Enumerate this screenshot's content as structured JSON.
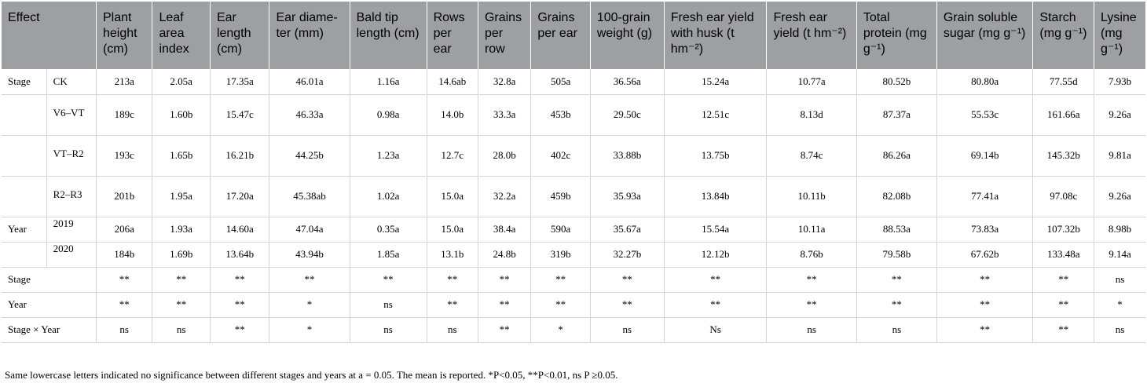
{
  "table": {
    "columns": [
      "Effect",
      "Plant height (cm)",
      "Leaf area index",
      "Ear length (cm)",
      "Ear diame-ter (mm)",
      "Bald tip length (cm)",
      "Rows per ear",
      "Grains per row",
      "Grains per ear",
      "100-grain weight (g)",
      "Fresh ear yield with husk (t hm⁻²)",
      "Fresh ear yield (t hm⁻²)",
      "Total protein (mg g⁻¹)",
      "Grain soluble sugar (mg g⁻¹)",
      "Starch (mg g⁻¹)",
      "Lysine (mg g⁻¹)"
    ],
    "rows": [
      {
        "effect": "Stage",
        "level": "CK",
        "values": [
          "213a",
          "2.05a",
          "17.35a",
          "46.01a",
          "1.16a",
          "14.6ab",
          "32.8a",
          "505a",
          "36.56a",
          "15.24a",
          "10.77a",
          "80.52b",
          "80.80a",
          "77.55d",
          "7.93b"
        ]
      },
      {
        "effect": "",
        "level": "V6–VT",
        "values": [
          "189c",
          "1.60b",
          "15.47c",
          "46.33a",
          "0.98a",
          "14.0b",
          "33.3a",
          "453b",
          "29.50c",
          "12.51c",
          "8.13d",
          "87.37a",
          "55.53c",
          "161.66a",
          "9.26a"
        ]
      },
      {
        "effect": "",
        "level": "VT–R2",
        "values": [
          "193c",
          "1.65b",
          "16.21b",
          "44.25b",
          "1.23a",
          "12.7c",
          "28.0b",
          "402c",
          "33.88b",
          "13.75b",
          "8.74c",
          "86.26a",
          "69.14b",
          "145.32b",
          "9.81a"
        ]
      },
      {
        "effect": "",
        "level": "R2–R3",
        "values": [
          "201b",
          "1.95a",
          "17.20a",
          "45.38ab",
          "1.02a",
          "15.0a",
          "32.2a",
          "459b",
          "35.93a",
          "13.84b",
          "10.11b",
          "82.08b",
          "77.41a",
          "97.08c",
          "9.26a"
        ]
      },
      {
        "effect": "Year",
        "level": "2019",
        "values": [
          "206a",
          "1.93a",
          "14.60a",
          "47.04a",
          "0.35a",
          "15.0a",
          "38.4a",
          "590a",
          "35.67a",
          "15.54a",
          "10.11a",
          "88.53a",
          "73.83a",
          "107.32b",
          "8.98b"
        ]
      },
      {
        "effect": "",
        "level": "2020",
        "values": [
          "184b",
          "1.69b",
          "13.64b",
          "43.94b",
          "1.85a",
          "13.1b",
          "24.8b",
          "319b",
          "32.27b",
          "12.12b",
          "8.76b",
          "79.58b",
          "67.62b",
          "133.48a",
          "9.14a"
        ]
      },
      {
        "effect": "Stage",
        "level": "",
        "values": [
          "**",
          "**",
          "**",
          "**",
          "**",
          "**",
          "**",
          "**",
          "**",
          "**",
          "**",
          "**",
          "**",
          "**",
          "ns"
        ]
      },
      {
        "effect": "Year",
        "level": "",
        "values": [
          "**",
          "**",
          "**",
          "*",
          "ns",
          "**",
          "**",
          "**",
          "**",
          "**",
          "**",
          "**",
          "**",
          "**",
          "*"
        ]
      },
      {
        "effect": "Stage × Year",
        "level": "",
        "values": [
          "ns",
          "ns",
          "**",
          "*",
          "ns",
          "ns",
          "**",
          "*",
          "ns",
          "Ns",
          "ns",
          "ns",
          "**",
          "**",
          "ns"
        ]
      }
    ]
  },
  "footnote": "Same lowercase letters indicated no significance between different stages and years at a = 0.05. The mean is reported. *P<0.05, **P<0.01, ns P ≥0.05."
}
